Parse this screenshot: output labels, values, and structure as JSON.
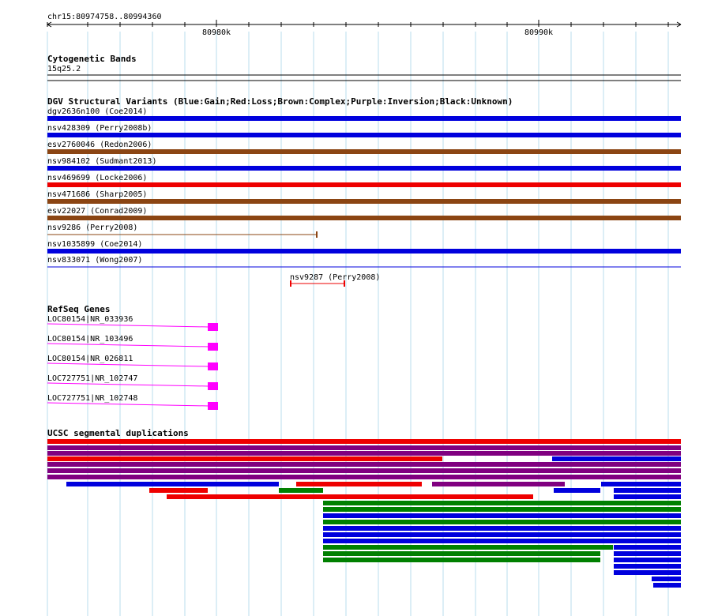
{
  "ruler": {
    "region": "chr15:80974758..80994360",
    "ticks": [
      "80980k",
      "80990k"
    ]
  },
  "cytogenetic": {
    "title": "Cytogenetic Bands",
    "band": "15q25.2"
  },
  "dgv": {
    "title": "DGV Structural Variants (Blue:Gain;Red:Loss;Brown:Complex;Purple:Inversion;Black:Unknown)",
    "colors": {
      "gain": "#0000dd",
      "loss": "#ee0000",
      "complex": "#8b4513",
      "inversion": "#800080",
      "unknown": "#000000"
    },
    "variants": [
      {
        "label": "dgv2636n100 (Coe2014)",
        "type": "gain"
      },
      {
        "label": "nsv428309 (Perry2008b)",
        "type": "gain"
      },
      {
        "label": "esv2760046 (Redon2006)",
        "type": "complex"
      },
      {
        "label": "nsv984102 (Sudmant2013)",
        "type": "gain"
      },
      {
        "label": "nsv469699 (Locke2006)",
        "type": "loss"
      },
      {
        "label": "nsv471686 (Sharp2005)",
        "type": "complex"
      },
      {
        "label": "esv22027 (Conrad2009)",
        "type": "complex"
      },
      {
        "label": "nsv9286 (Perry2008)",
        "type": "complex"
      },
      {
        "label": "nsv1035899 (Coe2014)",
        "type": "gain"
      },
      {
        "label": "nsv833071 (Wong2007)",
        "type": "gain"
      },
      {
        "label": "nsv9287 (Perry2008)",
        "type": "loss"
      }
    ]
  },
  "refseq": {
    "title": "RefSeq Genes",
    "color": "#ff00ff",
    "genes": [
      {
        "label": "LOC80154|NR_033936"
      },
      {
        "label": "LOC80154|NR_103496"
      },
      {
        "label": "LOC80154|NR_026811"
      },
      {
        "label": "LOC727751|NR_102747"
      },
      {
        "label": "LOC727751|NR_102748"
      }
    ]
  },
  "segdups": {
    "title": "UCSC segmental duplications",
    "colors": {
      "red": "#ee0000",
      "purple": "#800080",
      "blue": "#0000dd",
      "green": "#008000"
    }
  }
}
